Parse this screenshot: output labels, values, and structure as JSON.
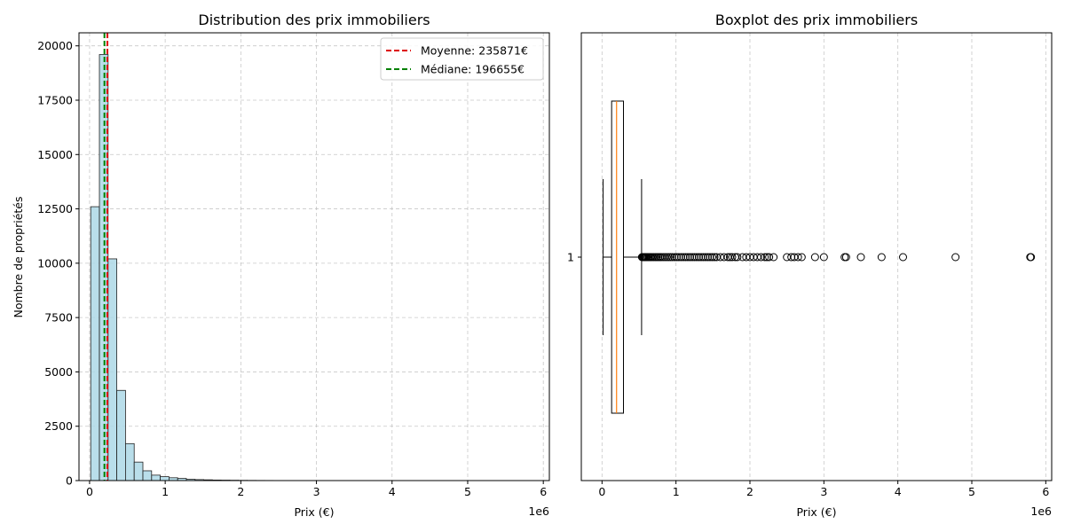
{
  "chart_data": [
    {
      "type": "bar",
      "title": "Distribution des prix immobiliers",
      "xlabel": "Prix (€)",
      "ylabel": "Nombre de propriétés",
      "x_offset_text": "1e6",
      "xlim": [
        -140000,
        6080000
      ],
      "ylim": [
        0,
        20600
      ],
      "x_ticks": [
        0,
        1000000,
        2000000,
        3000000,
        4000000,
        5000000,
        6000000
      ],
      "x_tick_labels": [
        "0",
        "1",
        "2",
        "3",
        "4",
        "5",
        "6"
      ],
      "y_ticks": [
        0,
        2500,
        5000,
        7500,
        10000,
        12500,
        15000,
        17500,
        20000
      ],
      "y_tick_labels": [
        "0",
        "2500",
        "5000",
        "7500",
        "10000",
        "12500",
        "15000",
        "17500",
        "20000"
      ],
      "grid": true,
      "bins": {
        "start": 15000,
        "width": 115000,
        "counts": [
          12600,
          19600,
          10200,
          4150,
          1700,
          850,
          450,
          250,
          180,
          130,
          100,
          60,
          45,
          35,
          25,
          20,
          15,
          10,
          8,
          6,
          5,
          4,
          3,
          3,
          2,
          2,
          2,
          1,
          1,
          1,
          1,
          1,
          1,
          1,
          1,
          1,
          1,
          1,
          1,
          1,
          1,
          1,
          1,
          1,
          1,
          1,
          1,
          1,
          1,
          2
        ]
      },
      "bar_color": "#add8e6",
      "vlines": [
        {
          "label": "Moyenne: 235871€",
          "value": 235871,
          "color": "#dd0000"
        },
        {
          "label": "Médiane: 196655€",
          "value": 196655,
          "color": "#008000"
        }
      ],
      "legend_position": "top-right"
    },
    {
      "type": "boxplot",
      "title": "Boxplot des prix immobiliers",
      "xlabel": "Prix (€)",
      "x_offset_text": "1e6",
      "xlim": [
        -280000,
        6080000
      ],
      "x_ticks": [
        0,
        1000000,
        2000000,
        3000000,
        4000000,
        5000000,
        6000000
      ],
      "x_tick_labels": [
        "0",
        "1",
        "2",
        "3",
        "4",
        "5",
        "6"
      ],
      "y_tick_labels": [
        "1"
      ],
      "grid": true,
      "box": {
        "whisker_low": 15000,
        "q1": 130000,
        "median": 196655,
        "q3": 290000,
        "whisker_high": 535000
      },
      "median_color": "#ff7f0e",
      "outliers": [
        540000,
        550000,
        560000,
        570000,
        580000,
        590000,
        600000,
        615000,
        630000,
        645000,
        660000,
        680000,
        700000,
        720000,
        740000,
        760000,
        780000,
        800000,
        825000,
        850000,
        875000,
        900000,
        925000,
        950000,
        980000,
        1010000,
        1040000,
        1070000,
        1100000,
        1130000,
        1160000,
        1190000,
        1220000,
        1250000,
        1280000,
        1310000,
        1340000,
        1370000,
        1400000,
        1430000,
        1460000,
        1490000,
        1520000,
        1550000,
        1600000,
        1650000,
        1700000,
        1730000,
        1760000,
        1800000,
        1830000,
        1900000,
        1950000,
        2000000,
        2050000,
        2100000,
        2150000,
        2200000,
        2230000,
        2260000,
        2320000,
        2500000,
        2560000,
        2600000,
        2650000,
        2700000,
        2880000,
        3000000,
        3280000,
        3300000,
        3500000,
        3780000,
        4070000,
        4780000,
        5790000,
        5800000
      ]
    }
  ]
}
